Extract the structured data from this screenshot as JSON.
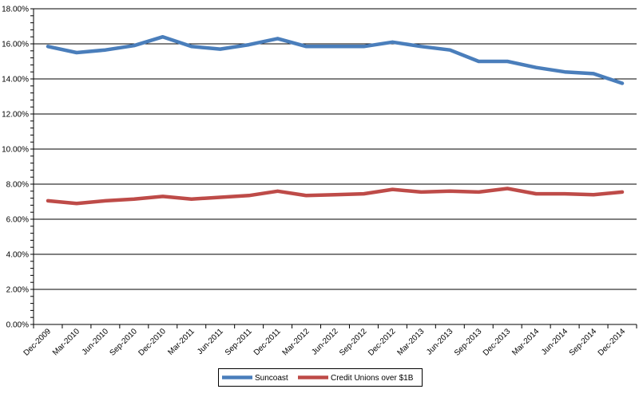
{
  "chart_data": {
    "type": "line",
    "title": "",
    "xlabel": "",
    "ylabel": "",
    "ylim": [
      0,
      18
    ],
    "y_ticks": [
      "0.00%",
      "2.00%",
      "4.00%",
      "6.00%",
      "8.00%",
      "10.00%",
      "12.00%",
      "14.00%",
      "16.00%",
      "18.00%"
    ],
    "grid": true,
    "legend_position": "bottom-center",
    "categories": [
      "Dec-2009",
      "Mar-2010",
      "Jun-2010",
      "Sep-2010",
      "Dec-2010",
      "Mar-2011",
      "Jun-2011",
      "Sep-2011",
      "Dec-2011",
      "Mar-2012",
      "Jun-2012",
      "Sep-2012",
      "Dec-2012",
      "Mar-2013",
      "Jun-2013",
      "Sep-2013",
      "Dec-2013",
      "Mar-2014",
      "Jun-2014",
      "Sep-2014",
      "Dec-2014"
    ],
    "series": [
      {
        "name": "Suncoast",
        "color": "#4a7ebb",
        "values": [
          15.85,
          15.5,
          15.65,
          15.9,
          16.4,
          15.85,
          15.7,
          15.95,
          16.3,
          15.85,
          15.85,
          15.85,
          16.1,
          15.85,
          15.65,
          15.0,
          15.0,
          14.65,
          14.4,
          14.3,
          13.75
        ]
      },
      {
        "name": "Credit Unions over $1B",
        "color": "#be4b48",
        "values": [
          7.05,
          6.9,
          7.05,
          7.15,
          7.3,
          7.15,
          7.25,
          7.35,
          7.6,
          7.35,
          7.4,
          7.45,
          7.7,
          7.55,
          7.6,
          7.55,
          7.75,
          7.45,
          7.45,
          7.4,
          7.55
        ]
      }
    ]
  }
}
